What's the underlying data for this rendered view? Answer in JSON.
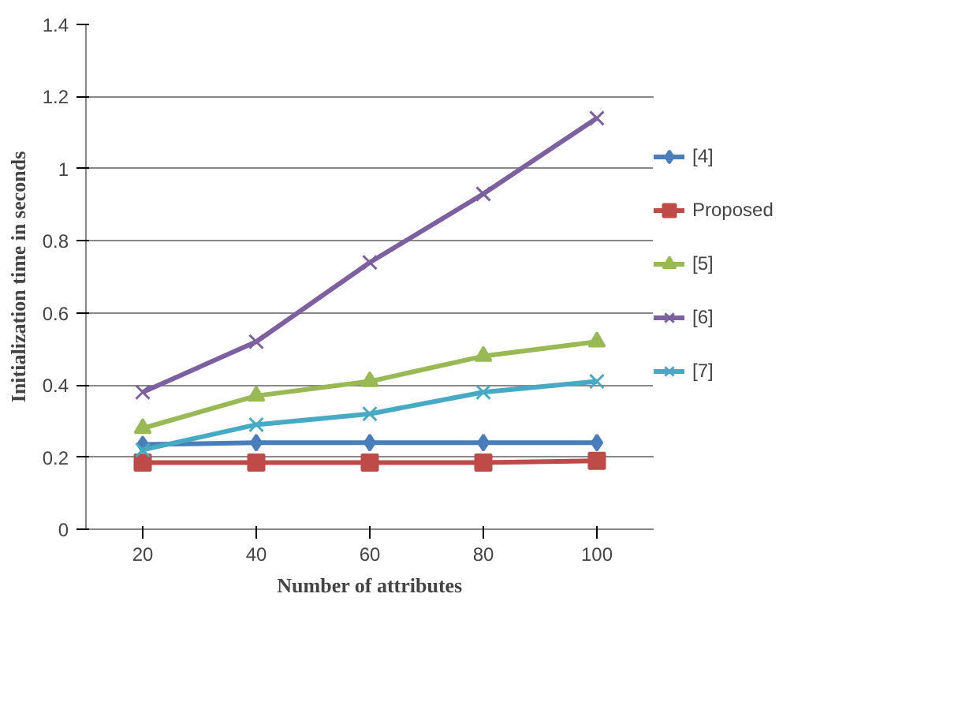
{
  "chart_data": {
    "type": "line",
    "xlabel": "Number of attributes",
    "ylabel": "Initialization time in seconds",
    "categories": [
      "20",
      "40",
      "60",
      "80",
      "100"
    ],
    "ylim": [
      0,
      1.4
    ],
    "yticks": [
      0,
      0.2,
      0.4,
      0.6,
      0.8,
      1,
      1.2,
      1.4
    ],
    "grid": "y",
    "legend": "right",
    "series": [
      {
        "name": "[4]",
        "color": "#4a7ebb",
        "marker": "diamond",
        "values": [
          0.235,
          0.24,
          0.24,
          0.24,
          0.24
        ]
      },
      {
        "name": "Proposed",
        "color": "#be4b48",
        "marker": "square",
        "values": [
          0.185,
          0.185,
          0.185,
          0.185,
          0.19
        ]
      },
      {
        "name": "[5]",
        "color": "#98b954",
        "marker": "triangle",
        "values": [
          0.28,
          0.37,
          0.41,
          0.48,
          0.52
        ]
      },
      {
        "name": "[6]",
        "color": "#7d60a0",
        "marker": "cross",
        "values": [
          0.38,
          0.52,
          0.74,
          0.93,
          1.14
        ]
      },
      {
        "name": "[7]",
        "color": "#46aac5",
        "marker": "cross",
        "values": [
          0.22,
          0.29,
          0.32,
          0.38,
          0.41
        ]
      }
    ]
  }
}
